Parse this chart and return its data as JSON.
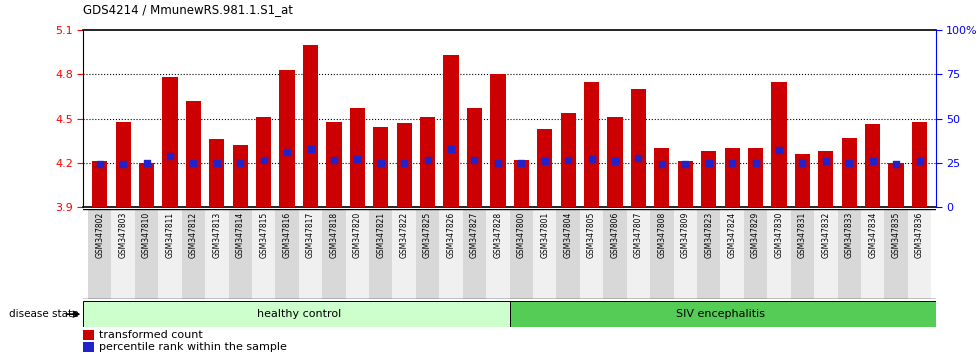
{
  "title": "GDS4214 / MmunewRS.981.1.S1_at",
  "samples": [
    "GSM347802",
    "GSM347803",
    "GSM347810",
    "GSM347811",
    "GSM347812",
    "GSM347813",
    "GSM347814",
    "GSM347815",
    "GSM347816",
    "GSM347817",
    "GSM347818",
    "GSM347820",
    "GSM347821",
    "GSM347822",
    "GSM347825",
    "GSM347826",
    "GSM347827",
    "GSM347828",
    "GSM347800",
    "GSM347801",
    "GSM347804",
    "GSM347805",
    "GSM347806",
    "GSM347807",
    "GSM347808",
    "GSM347809",
    "GSM347823",
    "GSM347824",
    "GSM347829",
    "GSM347830",
    "GSM347831",
    "GSM347832",
    "GSM347833",
    "GSM347834",
    "GSM347835",
    "GSM347836"
  ],
  "bar_values": [
    4.21,
    4.48,
    4.2,
    4.78,
    4.62,
    4.36,
    4.32,
    4.51,
    4.83,
    5.0,
    4.48,
    4.57,
    4.44,
    4.47,
    4.51,
    4.93,
    4.57,
    4.8,
    4.22,
    4.43,
    4.54,
    4.75,
    4.51,
    4.7,
    4.3,
    4.21,
    4.28,
    4.3,
    4.3,
    4.75,
    4.26,
    4.28,
    4.37,
    4.46,
    4.2,
    4.48
  ],
  "blue_dot_values": [
    4.195,
    4.195,
    4.2,
    4.245,
    4.2,
    4.2,
    4.2,
    4.22,
    4.275,
    4.295,
    4.22,
    4.225,
    4.2,
    4.2,
    4.22,
    4.295,
    4.22,
    4.2,
    4.2,
    4.21,
    4.22,
    4.225,
    4.21,
    4.235,
    4.195,
    4.195,
    4.2,
    4.2,
    4.2,
    4.285,
    4.2,
    4.21,
    4.2,
    4.21,
    4.195,
    4.21
  ],
  "ymin": 3.9,
  "ymax": 5.1,
  "bar_color": "#cc0000",
  "dot_color": "#2222cc",
  "healthy_count": 18,
  "healthy_label": "healthy control",
  "siv_label": "SIV encephalitis",
  "healthy_bg": "#ccffcc",
  "siv_bg": "#55cc55",
  "label_bg_even": "#d8d8d8",
  "label_bg_odd": "#f0f0f0",
  "yticks_left": [
    3.9,
    4.2,
    4.5,
    4.8,
    5.1
  ],
  "yticks_right": [
    0,
    25,
    50,
    75,
    100
  ],
  "disease_state_label": "disease state",
  "legend_bar": "transformed count",
  "legend_dot": "percentile rank within the sample",
  "grid_lines": [
    4.2,
    4.5,
    4.8
  ]
}
